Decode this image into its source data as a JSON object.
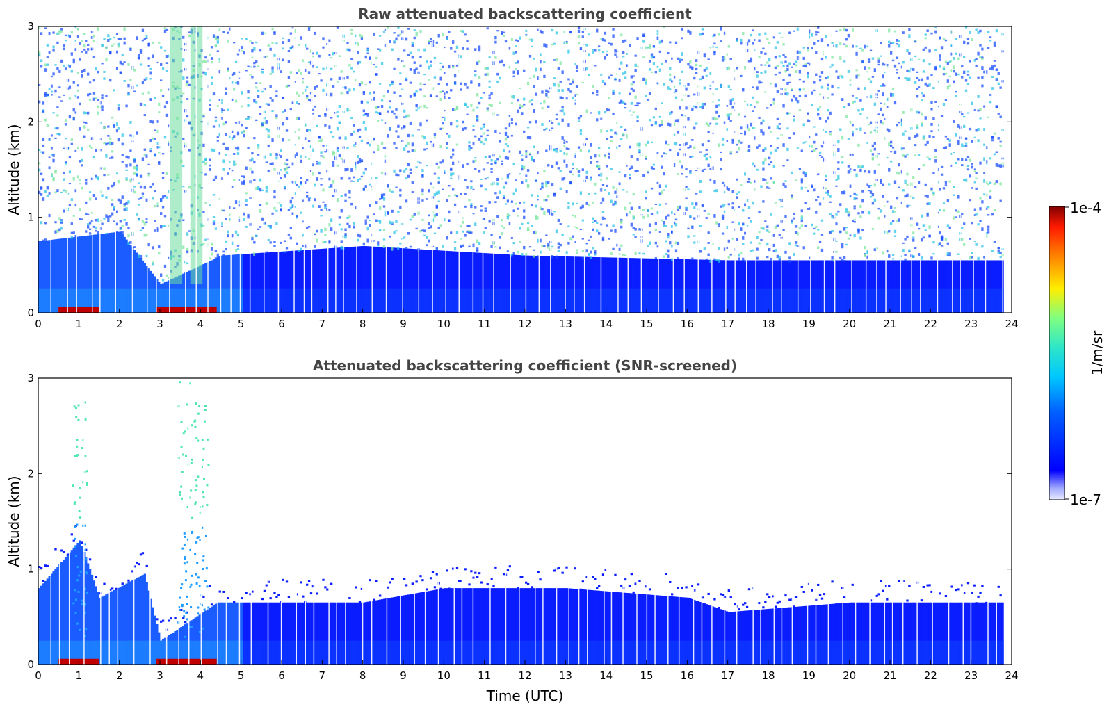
{
  "chart_data": [
    {
      "type": "heatmap",
      "title": "Raw attenuated backscattering coefficient",
      "xlabel": "",
      "ylabel": "Altitude (km)",
      "xlim": [
        0,
        24
      ],
      "ylim": [
        0,
        3
      ],
      "x_ticks": [
        "0",
        "1",
        "2",
        "3",
        "4",
        "5",
        "6",
        "7",
        "8",
        "9",
        "10",
        "11",
        "12",
        "13",
        "14",
        "15",
        "16",
        "17",
        "18",
        "19",
        "20",
        "21",
        "22",
        "23",
        "24"
      ],
      "y_ticks": [
        "0",
        "1",
        "2",
        "3"
      ],
      "features": {
        "boundary_layer_top_km": [
          [
            0,
            0.75
          ],
          [
            2,
            0.85
          ],
          [
            3,
            0.3
          ],
          [
            4.5,
            0.6
          ],
          [
            8,
            0.7
          ],
          [
            12,
            0.6
          ],
          [
            17,
            0.55
          ],
          [
            24,
            0.55
          ]
        ],
        "dense_noise_until_km": 3,
        "near_ground_strong_layer": [
          [
            0.5,
            1.5
          ],
          [
            2.9,
            4.4
          ]
        ],
        "cloud_columns_hours": [
          3.4,
          3.9
        ]
      }
    },
    {
      "type": "heatmap",
      "title": "Attenuated backscattering coefficient (SNR-screened)",
      "xlabel": "Time (UTC)",
      "ylabel": "Altitude (km)",
      "xlim": [
        0,
        24
      ],
      "ylim": [
        0,
        3
      ],
      "x_ticks": [
        "0",
        "1",
        "2",
        "3",
        "4",
        "5",
        "6",
        "7",
        "8",
        "9",
        "10",
        "11",
        "12",
        "13",
        "14",
        "15",
        "16",
        "17",
        "18",
        "19",
        "20",
        "21",
        "22",
        "23",
        "24"
      ],
      "y_ticks": [
        "0",
        "1",
        "2",
        "3"
      ],
      "features": {
        "boundary_layer_top_km": [
          [
            0,
            0.8
          ],
          [
            1,
            1.3
          ],
          [
            1.5,
            0.7
          ],
          [
            2.6,
            0.95
          ],
          [
            3,
            0.25
          ],
          [
            4.4,
            0.65
          ],
          [
            8,
            0.65
          ],
          [
            10,
            0.8
          ],
          [
            13,
            0.8
          ],
          [
            16,
            0.7
          ],
          [
            17,
            0.55
          ],
          [
            20,
            0.65
          ],
          [
            24,
            0.65
          ]
        ],
        "plume_columns": [
          {
            "x": 1.0,
            "top_km": 2.8
          },
          {
            "x": 3.6,
            "top_km": 3.0
          },
          {
            "x": 4.0,
            "top_km": 2.8
          }
        ]
      }
    }
  ],
  "colorbar": {
    "max_label": "1e-4",
    "min_label": "1e-7",
    "unit_label": "1/m/sr",
    "colormap": "jet"
  }
}
